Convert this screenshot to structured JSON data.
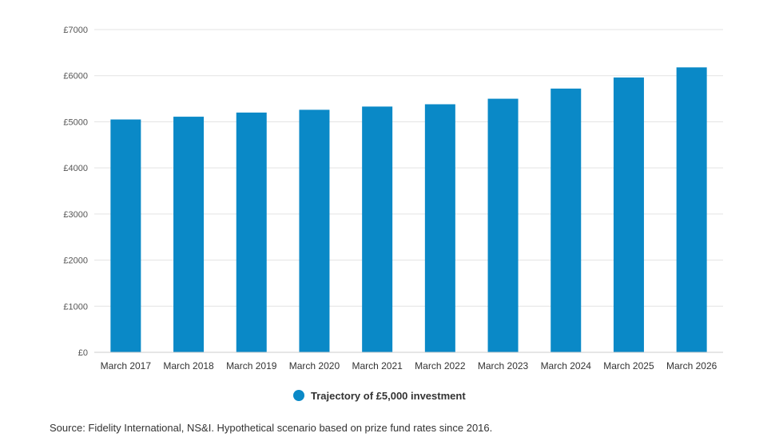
{
  "chart_data": {
    "type": "bar",
    "categories": [
      "March 2017",
      "March 2018",
      "March 2019",
      "March 2020",
      "March 2021",
      "March 2022",
      "March 2023",
      "March 2024",
      "March 2025",
      "March 2026"
    ],
    "series": [
      {
        "name": "Trajectory of £5,000 investment",
        "values": [
          5050,
          5110,
          5200,
          5260,
          5330,
          5380,
          5500,
          5720,
          5960,
          6180
        ],
        "color": "#0a89c7"
      }
    ],
    "yticks": [
      "£0",
      "£1000",
      "£2000",
      "£3000",
      "£4000",
      "£5000",
      "£6000",
      "£7000"
    ],
    "ylim": [
      0,
      7000
    ],
    "grid": true,
    "legend_position": "bottom-center"
  },
  "source": "Source: Fidelity International, NS&I. Hypothetical scenario based on prize fund rates since 2016."
}
